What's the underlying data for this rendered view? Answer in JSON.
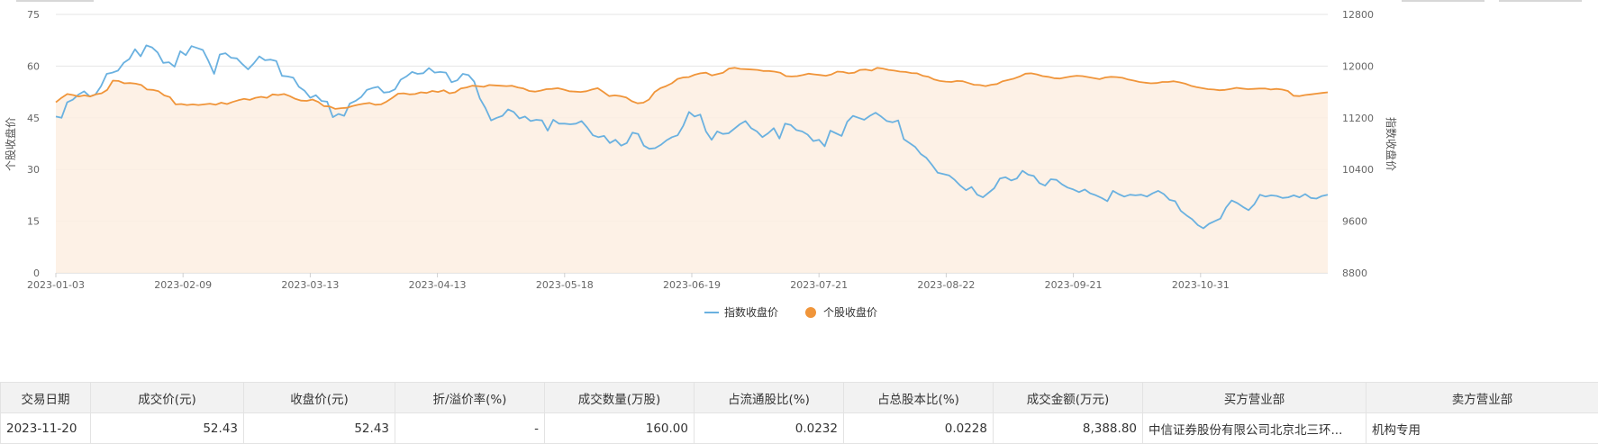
{
  "chart_data": {
    "type": "line",
    "left_axis": {
      "ylabel": "个股收盘价",
      "ylim": [
        0,
        75
      ],
      "ticks": [
        "0",
        "15",
        "30",
        "45",
        "60",
        "75"
      ]
    },
    "right_axis": {
      "ylabel": "指数收盘价",
      "ylim": [
        8800,
        12800
      ],
      "ticks": [
        "8800",
        "9600",
        "10400",
        "11200",
        "12000",
        "12800"
      ]
    },
    "x_tick_labels": [
      "2023-01-03",
      "2023-02-09",
      "2023-03-13",
      "2023-04-13",
      "2023-05-18",
      "2023-06-19",
      "2023-07-21",
      "2023-08-22",
      "2023-09-21",
      "2023-10-31"
    ],
    "legend": {
      "placement": "bottom-center",
      "items": [
        {
          "name": "指数收盘价",
          "color": "#6ab1e0"
        },
        {
          "name": "个股收盘价",
          "color": "#f0953a"
        }
      ]
    },
    "series": [
      {
        "name": "指数收盘价",
        "axis": "right",
        "color": "#6ab1e0",
        "values": [
          11220,
          11200,
          11440,
          11480,
          11560,
          11610,
          11530,
          11560,
          11690,
          11880,
          11900,
          11930,
          12050,
          12110,
          12260,
          12150,
          12320,
          12290,
          12210,
          12050,
          12060,
          11990,
          12230,
          12170,
          12310,
          12280,
          12250,
          12080,
          11880,
          12180,
          12200,
          12130,
          12120,
          12030,
          11950,
          12040,
          12150,
          12090,
          12100,
          12080,
          11850,
          11840,
          11820,
          11680,
          11620,
          11510,
          11550,
          11460,
          11450,
          11210,
          11260,
          11230,
          11420,
          11460,
          11520,
          11630,
          11660,
          11680,
          11590,
          11600,
          11640,
          11790,
          11840,
          11910,
          11880,
          11890,
          11970,
          11900,
          11910,
          11900,
          11750,
          11780,
          11880,
          11860,
          11760,
          11500,
          11350,
          11160,
          11200,
          11230,
          11330,
          11290,
          11190,
          11220,
          11150,
          11170,
          11160,
          11000,
          11170,
          11110,
          11110,
          11100,
          11110,
          11150,
          11050,
          10930,
          10900,
          10920,
          10810,
          10860,
          10770,
          10810,
          10970,
          10950,
          10770,
          10720,
          10730,
          10780,
          10850,
          10900,
          10930,
          11080,
          11290,
          11220,
          11250,
          10990,
          10860,
          10990,
          10950,
          10960,
          11030,
          11100,
          11150,
          11040,
          10990,
          10900,
          10960,
          11040,
          10880,
          11110,
          11090,
          11010,
          10990,
          10940,
          10840,
          10860,
          10760,
          11000,
          10960,
          10920,
          11140,
          11230,
          11200,
          11170,
          11230,
          11280,
          11220,
          11150,
          11130,
          11160,
          10870,
          10810,
          10750,
          10640,
          10580,
          10470,
          10350,
          10330,
          10310,
          10240,
          10150,
          10080,
          10130,
          10010,
          9970,
          10040,
          10110,
          10260,
          10280,
          10230,
          10260,
          10380,
          10320,
          10300,
          10190,
          10150,
          10250,
          10240,
          10170,
          10120,
          10090,
          10050,
          10090,
          10030,
          10000,
          9960,
          9910,
          10070,
          10020,
          9980,
          10010,
          10000,
          10010,
          9980,
          10030,
          10070,
          10020,
          9930,
          9910,
          9760,
          9690,
          9630,
          9540,
          9490,
          9560,
          9600,
          9640,
          9810,
          9920,
          9880,
          9820,
          9770,
          9860,
          10010,
          9980,
          10000,
          9990,
          9960,
          9970,
          10000,
          9970,
          10020,
          9960,
          9950,
          9990,
          10010
        ]
      },
      {
        "name": "个股收盘价",
        "axis": "left",
        "color": "#f0953a",
        "values": [
          49.5,
          50.8,
          51.9,
          51.6,
          51.2,
          51.5,
          51.2,
          51.8,
          52.1,
          53.1,
          55.8,
          55.7,
          55.0,
          55.1,
          54.9,
          54.5,
          53.2,
          53.1,
          52.7,
          51.5,
          51.0,
          48.9,
          49.0,
          48.7,
          48.9,
          48.7,
          48.9,
          49.1,
          48.8,
          49.4,
          49.0,
          49.6,
          50.1,
          50.5,
          50.2,
          50.8,
          51.1,
          50.8,
          51.8,
          51.6,
          51.9,
          51.3,
          50.5,
          50.0,
          49.9,
          50.3,
          49.6,
          48.4,
          48.3,
          47.6,
          47.8,
          47.9,
          48.4,
          48.8,
          49.1,
          49.3,
          48.8,
          48.9,
          49.7,
          50.8,
          52.0,
          52.1,
          51.8,
          51.9,
          52.4,
          52.2,
          52.8,
          52.5,
          53.0,
          52.1,
          52.4,
          53.5,
          53.8,
          54.3,
          54.2,
          54.0,
          54.5,
          54.4,
          54.3,
          54.2,
          54.3,
          53.8,
          53.5,
          52.8,
          52.6,
          52.9,
          53.3,
          53.4,
          53.6,
          53.2,
          52.7,
          52.6,
          52.5,
          52.7,
          53.2,
          53.6,
          52.5,
          51.3,
          51.5,
          51.3,
          50.9,
          49.8,
          49.2,
          49.4,
          50.3,
          52.5,
          53.6,
          54.2,
          55.0,
          56.3,
          56.7,
          56.8,
          57.5,
          57.9,
          58.1,
          57.3,
          57.7,
          58.1,
          59.3,
          59.5,
          59.2,
          59.1,
          59.0,
          58.9,
          58.6,
          58.6,
          58.4,
          58.1,
          57.1,
          57.0,
          57.1,
          57.4,
          57.8,
          57.6,
          57.4,
          57.2,
          57.6,
          58.4,
          58.3,
          57.9,
          58.1,
          58.9,
          59.0,
          58.7,
          59.5,
          59.3,
          58.9,
          58.7,
          58.4,
          58.3,
          58.0,
          57.9,
          57.2,
          56.9,
          56.1,
          55.7,
          55.5,
          55.4,
          55.7,
          55.6,
          55.1,
          54.6,
          54.5,
          54.2,
          54.6,
          54.8,
          55.6,
          56.0,
          56.4,
          57.0,
          57.8,
          57.9,
          57.6,
          57.1,
          56.9,
          56.5,
          56.4,
          56.7,
          57.0,
          57.2,
          57.1,
          56.8,
          56.5,
          56.2,
          56.7,
          56.9,
          56.8,
          56.6,
          56.1,
          55.8,
          55.4,
          55.2,
          55.0,
          55.1,
          55.4,
          55.4,
          55.6,
          55.3,
          54.9,
          54.3,
          53.9,
          53.6,
          53.3,
          53.2,
          53.0,
          53.1,
          53.4,
          53.7,
          53.5,
          53.3,
          53.4,
          53.5,
          53.5,
          53.2,
          53.4,
          53.2,
          52.8,
          51.4,
          51.3,
          51.6,
          51.8,
          52.0,
          52.2,
          52.4
        ]
      }
    ]
  },
  "table": {
    "headers": [
      "交易日期",
      "成交价(元)",
      "收盘价(元)",
      "折/溢价率(%)",
      "成交数量(万股)",
      "占流通股比(%)",
      "占总股本比(%)",
      "成交金额(万元)",
      "买方营业部",
      "卖方营业部"
    ],
    "rows": [
      [
        "2023-11-20",
        "52.43",
        "52.43",
        "-",
        "160.00",
        "0.0232",
        "0.0228",
        "8,388.80",
        "中信证券股份有限公司北京北三环...",
        "机构专用"
      ]
    ]
  }
}
